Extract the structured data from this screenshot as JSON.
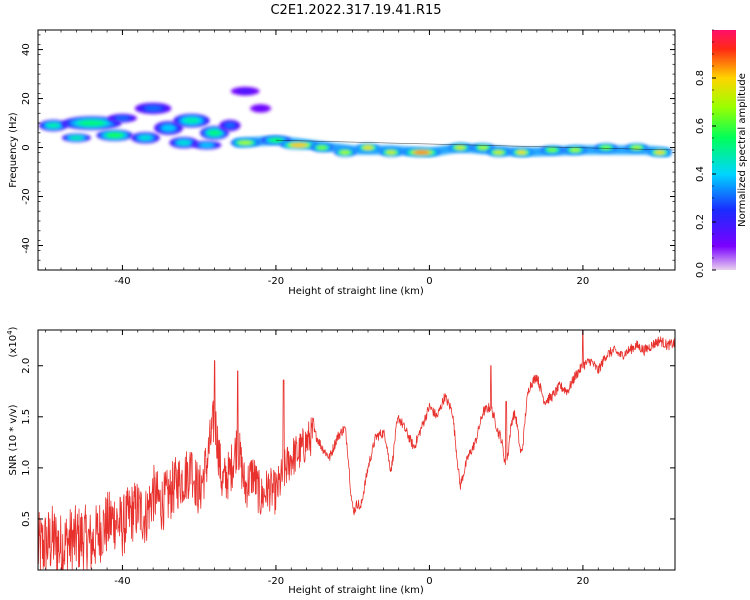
{
  "title": "C2E1.2022.317.19.41.R15",
  "chart_data": [
    {
      "type": "heatmap",
      "xlabel": "Height of straight line (km)",
      "ylabel": "Frequency (Hz)",
      "xlim": [
        -51,
        32
      ],
      "ylim": [
        -50,
        48
      ],
      "xticks": [
        -40,
        -20,
        0,
        20
      ],
      "yticks": [
        -40,
        -20,
        0,
        20,
        40
      ],
      "colorbar": {
        "label": "Normalized spectral amplitude",
        "range": [
          0,
          1
        ],
        "ticks": [
          "0.0",
          "0.2",
          "0.4",
          "0.6",
          "0.8"
        ],
        "colormap": "rainbow",
        "colors": [
          "#e8d0ee",
          "#7a00ff",
          "#1a2cff",
          "#00d6ff",
          "#00ff5a",
          "#9cff00",
          "#ffd400",
          "#ff2a14",
          "#ff0f6a"
        ]
      },
      "blobs": [
        {
          "x": -49,
          "y": 9,
          "w": 3,
          "h": 3,
          "v": 0.5
        },
        {
          "x": -44,
          "y": 10,
          "w": 7,
          "h": 4,
          "v": 0.55
        },
        {
          "x": -46,
          "y": 4,
          "w": 3,
          "h": 2,
          "v": 0.5
        },
        {
          "x": -41,
          "y": 5,
          "w": 4,
          "h": 3,
          "v": 0.6
        },
        {
          "x": -37,
          "y": 4,
          "w": 3,
          "h": 3,
          "v": 0.45
        },
        {
          "x": -40,
          "y": 12,
          "w": 3,
          "h": 2,
          "v": 0.3
        },
        {
          "x": -36,
          "y": 16,
          "w": 4,
          "h": 3,
          "v": 0.3
        },
        {
          "x": -34,
          "y": 8,
          "w": 3,
          "h": 4,
          "v": 0.4
        },
        {
          "x": -31,
          "y": 11,
          "w": 4,
          "h": 4,
          "v": 0.5
        },
        {
          "x": -32,
          "y": 2,
          "w": 3,
          "h": 3,
          "v": 0.45
        },
        {
          "x": -28,
          "y": 6,
          "w": 3,
          "h": 4,
          "v": 0.55
        },
        {
          "x": -29,
          "y": 1,
          "w": 3,
          "h": 2,
          "v": 0.4
        },
        {
          "x": -26,
          "y": 9,
          "w": 2,
          "h": 3,
          "v": 0.3
        },
        {
          "x": -24,
          "y": 23,
          "w": 3,
          "h": 2,
          "v": 0.15
        },
        {
          "x": -22,
          "y": 16,
          "w": 2,
          "h": 2,
          "v": 0.1
        },
        {
          "x": -24,
          "y": 2,
          "w": 3,
          "h": 2,
          "v": 0.75
        },
        {
          "x": -20,
          "y": 3,
          "w": 3,
          "h": 2,
          "v": 0.6
        },
        {
          "x": -17,
          "y": 1,
          "w": 4,
          "h": 2,
          "v": 0.9
        },
        {
          "x": -14,
          "y": 0,
          "w": 2,
          "h": 2,
          "v": 0.7
        },
        {
          "x": -11,
          "y": -2,
          "w": 2,
          "h": 2,
          "v": 0.75
        },
        {
          "x": -8,
          "y": 0,
          "w": 2,
          "h": 2,
          "v": 0.85
        },
        {
          "x": -5,
          "y": -2,
          "w": 2,
          "h": 2,
          "v": 0.8
        },
        {
          "x": -1,
          "y": -2,
          "w": 4,
          "h": 2,
          "v": 0.95
        },
        {
          "x": 4,
          "y": 0,
          "w": 2,
          "h": 2,
          "v": 0.8
        },
        {
          "x": 7,
          "y": 0,
          "w": 2,
          "h": 2,
          "v": 0.75
        },
        {
          "x": 9,
          "y": -2,
          "w": 2,
          "h": 2,
          "v": 0.8
        },
        {
          "x": 12,
          "y": -2,
          "w": 2,
          "h": 2,
          "v": 0.85
        },
        {
          "x": 16,
          "y": -1,
          "w": 2,
          "h": 2,
          "v": 0.7
        },
        {
          "x": 19,
          "y": -1,
          "w": 2,
          "h": 2,
          "v": 0.75
        },
        {
          "x": 23,
          "y": 0,
          "w": 2,
          "h": 2,
          "v": 0.7
        },
        {
          "x": 27,
          "y": 0,
          "w": 2,
          "h": 2,
          "v": 0.75
        },
        {
          "x": 30,
          "y": -2,
          "w": 2,
          "h": 2,
          "v": 0.85
        }
      ]
    },
    {
      "type": "line",
      "xlabel": "Height of straight line (km)",
      "ylabel": "SNR (10 * v/v)",
      "multiplier": "x10^4",
      "xlim": [
        -51,
        32
      ],
      "ylim": [
        0,
        2.35
      ],
      "xticks": [
        -40,
        -20,
        0,
        20
      ],
      "yticks": [
        0.5,
        1.0,
        1.5,
        2.0
      ],
      "color": "#e8312d",
      "x": [
        -51,
        -50,
        -49,
        -48,
        -47,
        -46,
        -45,
        -44,
        -43,
        -42,
        -41,
        -40,
        -39,
        -38,
        -37,
        -36,
        -35,
        -34,
        -33,
        -32,
        -31,
        -30,
        -29,
        -28,
        -27,
        -26,
        -25,
        -24,
        -23,
        -22,
        -21,
        -20,
        -19,
        -18,
        -17,
        -16,
        -15,
        -14,
        -13,
        -12,
        -11,
        -10,
        -9,
        -8,
        -7,
        -6,
        -5,
        -4,
        -3,
        -2,
        -1,
        0,
        1,
        2,
        3,
        4,
        5,
        6,
        7,
        8,
        9,
        10,
        11,
        12,
        13,
        14,
        15,
        16,
        17,
        18,
        19,
        20,
        21,
        22,
        23,
        24,
        25,
        26,
        27,
        28,
        29,
        30,
        31,
        32
      ],
      "y": [
        0.2,
        0.25,
        0.3,
        0.22,
        0.28,
        0.3,
        0.32,
        0.25,
        0.38,
        0.45,
        0.5,
        0.42,
        0.55,
        0.6,
        0.52,
        0.75,
        0.65,
        0.72,
        0.85,
        0.9,
        1.0,
        0.75,
        1.05,
        1.5,
        0.85,
        0.95,
        1.25,
        0.8,
        0.95,
        0.7,
        0.8,
        0.75,
        0.95,
        1.1,
        1.15,
        1.25,
        1.35,
        1.2,
        1.1,
        1.3,
        1.4,
        1.05,
        0.6,
        1.0,
        1.3,
        1.35,
        1.4,
        1.5,
        1.35,
        1.2,
        1.4,
        1.6,
        1.5,
        1.7,
        1.55,
        0.85,
        1.1,
        1.25,
        1.55,
        1.6,
        1.35,
        1.45,
        1.55,
        1.6,
        1.8,
        1.9,
        1.65,
        1.7,
        1.8,
        1.75,
        1.9,
        2.0,
        2.05,
        1.95,
        2.1,
        2.15,
        2.1,
        2.15,
        2.2,
        2.15,
        2.2,
        2.25,
        2.2,
        2.22
      ],
      "dips": [
        {
          "x": -10,
          "y": 0.62
        },
        {
          "x": -5,
          "y": 1.0
        },
        {
          "x": 4,
          "y": 0.82
        },
        {
          "x": 10,
          "y": 1.05
        },
        {
          "x": 12,
          "y": 1.15
        }
      ],
      "peaks": [
        {
          "x": -31,
          "y": 1.15
        },
        {
          "x": -28,
          "y": 2.05
        },
        {
          "x": -25,
          "y": 1.95
        },
        {
          "x": -19,
          "y": 1.86
        },
        {
          "x": 8,
          "y": 2.0
        },
        {
          "x": 10,
          "y": 1.65
        },
        {
          "x": 20,
          "y": 2.35
        }
      ]
    }
  ]
}
